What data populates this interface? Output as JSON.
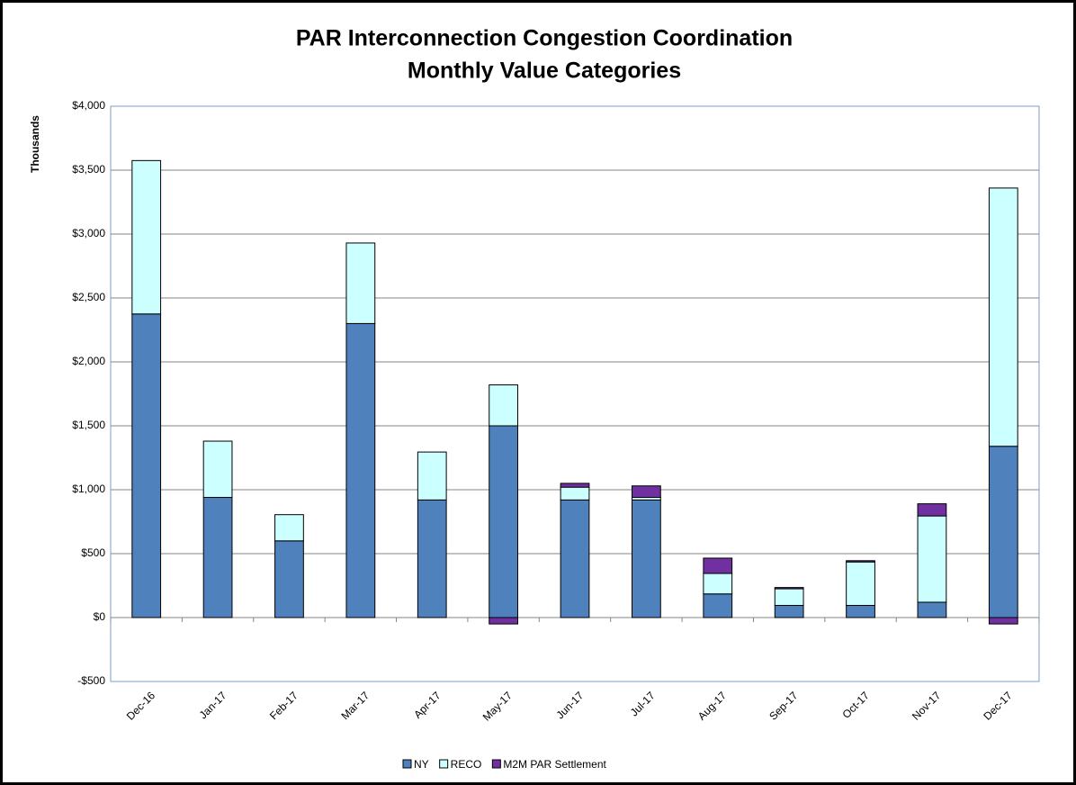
{
  "chart_data": {
    "type": "stacked-bar",
    "title": "PAR Interconnection Congestion Coordination",
    "subtitle": "Monthly Value Categories",
    "y_label": "Thousands",
    "categories": [
      "Dec-16",
      "Jan-17",
      "Feb-17",
      "Mar-17",
      "Apr-17",
      "May-17",
      "Jun-17",
      "Jul-17",
      "Aug-17",
      "Sep-17",
      "Oct-17",
      "Nov-17",
      "Dec-17"
    ],
    "series": [
      {
        "name": "NY",
        "color": "#4f81bd",
        "values": [
          2375,
          940,
          600,
          2300,
          920,
          1500,
          920,
          920,
          185,
          95,
          95,
          120,
          1340
        ]
      },
      {
        "name": "RECO",
        "color": "#ccffff",
        "values": [
          1200,
          440,
          205,
          630,
          375,
          320,
          100,
          20,
          160,
          130,
          340,
          675,
          2020
        ]
      },
      {
        "name": "M2M PAR Settlement",
        "color": "#7030a0",
        "values": [
          0,
          0,
          0,
          0,
          0,
          -50,
          30,
          90,
          120,
          10,
          10,
          95,
          -50
        ]
      }
    ],
    "ylim": [
      -500,
      4000
    ],
    "yticks": [
      {
        "value": -500,
        "label": "-$500"
      },
      {
        "value": 0,
        "label": "$0"
      },
      {
        "value": 500,
        "label": "$500"
      },
      {
        "value": 1000,
        "label": "$1,000"
      },
      {
        "value": 1500,
        "label": "$1,500"
      },
      {
        "value": 2000,
        "label": "$2,000"
      },
      {
        "value": 2500,
        "label": "$2,500"
      },
      {
        "value": 3000,
        "label": "$3,000"
      },
      {
        "value": 3500,
        "label": "$3,500"
      },
      {
        "value": 4000,
        "label": "$4,000"
      }
    ],
    "grid": true,
    "legend": "bottom"
  }
}
